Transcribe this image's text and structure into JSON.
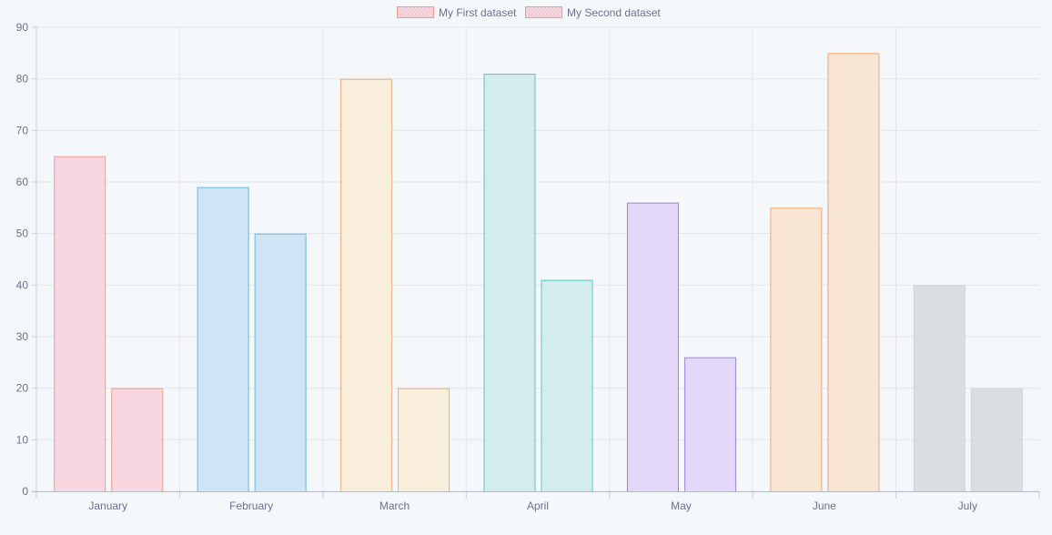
{
  "chart_data": {
    "type": "bar",
    "categories": [
      "January",
      "February",
      "March",
      "April",
      "May",
      "June",
      "July"
    ],
    "series": [
      {
        "name": "My First dataset",
        "values": [
          65,
          59,
          80,
          81,
          56,
          55,
          40
        ]
      },
      {
        "name": "My Second dataset",
        "values": [
          20,
          50,
          20,
          41,
          26,
          85,
          20
        ]
      }
    ],
    "category_colors": {
      "fill": [
        "#f8d7e0",
        "#cfe5f6",
        "#f8eedb",
        "#d3ecee",
        "#e3d8fa",
        "#f8e5d3",
        "#dadde1"
      ],
      "border": [
        "#f49a84",
        "#6ab7e0",
        "#f3ad74",
        "#60bfca",
        "#9b82d8",
        "#f3a673",
        "#cfd3d8"
      ]
    },
    "legend_colors": {
      "fill": "#f8d7e0",
      "border": "#f49a84"
    },
    "ylim": [
      0,
      90
    ],
    "yticks": [
      0,
      10,
      20,
      30,
      40,
      50,
      60,
      70,
      80,
      90
    ],
    "grid": true,
    "legend_position": "top",
    "title": "",
    "xlabel": "",
    "ylabel": ""
  }
}
